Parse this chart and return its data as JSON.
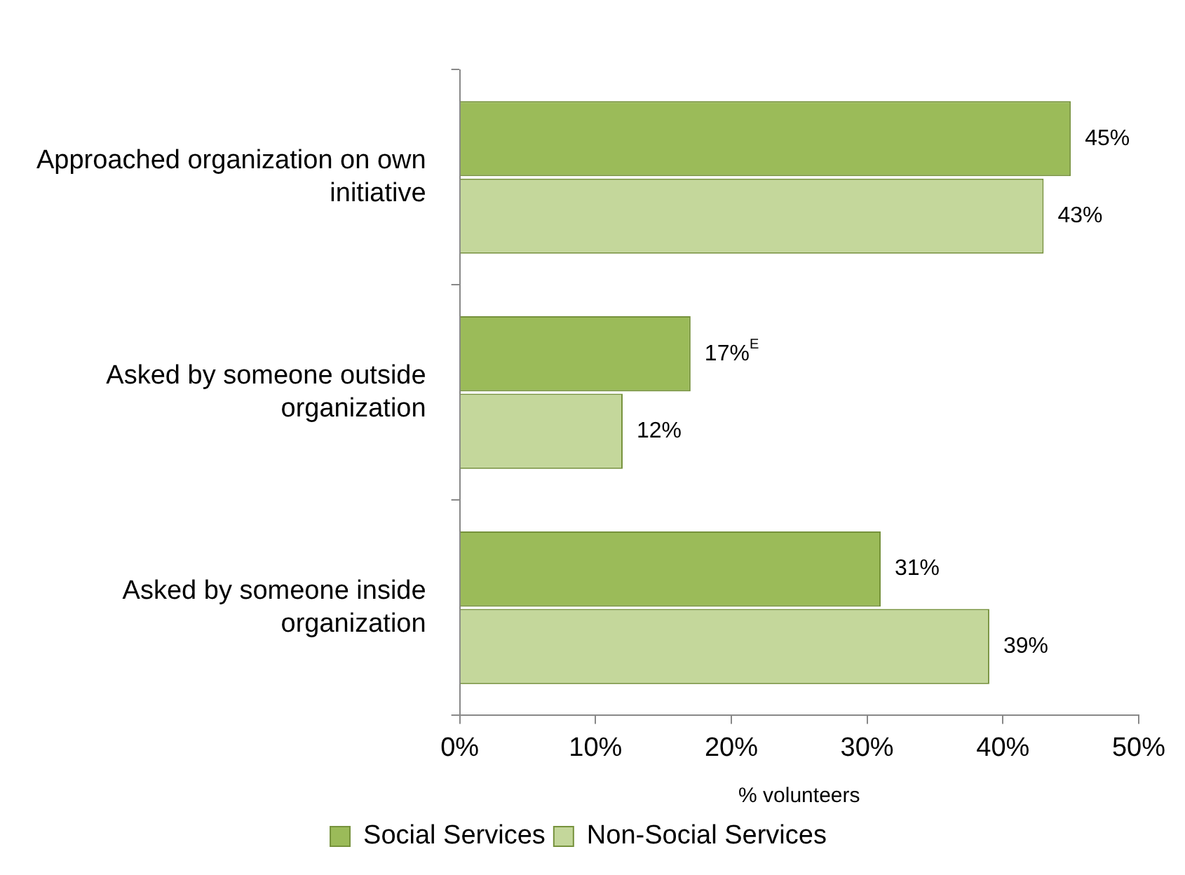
{
  "chart_data": {
    "type": "bar",
    "orientation": "horizontal",
    "categories": [
      "Approached organization on own initiative",
      "Asked by someone outside organization",
      "Asked by someone inside organization"
    ],
    "series": [
      {
        "name": "Social Services",
        "color": "#9bbb59",
        "values": [
          45,
          17,
          31
        ],
        "value_labels": [
          "45%",
          "17%$^{E}$",
          "31%"
        ]
      },
      {
        "name": "Non-Social Services",
        "color": "#c4d79b",
        "values": [
          43,
          12,
          39
        ],
        "value_labels": [
          "43%",
          "12%",
          "39%"
        ]
      }
    ],
    "xlim": [
      0,
      50
    ],
    "xticks": [
      {
        "value": 0,
        "label": "0%"
      },
      {
        "value": 10,
        "label": "10%"
      },
      {
        "value": 20,
        "label": "20%"
      },
      {
        "value": 30,
        "label": "30%"
      },
      {
        "value": 40,
        "label": "40%"
      },
      {
        "value": 50,
        "label": "50%"
      }
    ],
    "xlabel": "% volunteers",
    "grid": false,
    "legend": "bottom"
  }
}
